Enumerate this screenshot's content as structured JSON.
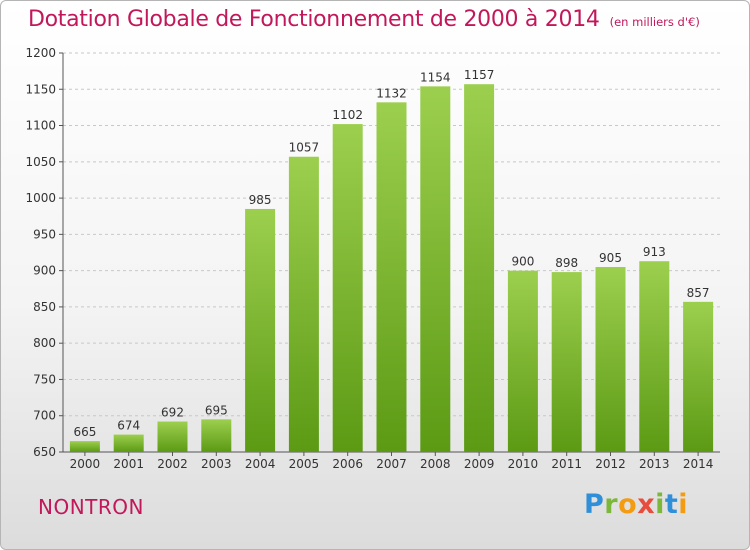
{
  "title": "Dotation Globale de Fonctionnement de 2000 à 2014",
  "unit": "(en milliers d'€)",
  "city": "NONTRON",
  "logo": {
    "letters": [
      "P",
      "r",
      "o",
      "x",
      "i",
      "t",
      "i"
    ],
    "colors": [
      "#2f8fd8",
      "#7bb83a",
      "#f39c12",
      "#e74c3c",
      "#7bb83a",
      "#2f8fd8",
      "#f39c12"
    ]
  },
  "colors": {
    "title": "#c2185b",
    "bar_top": "#9ccf4e",
    "bar_bottom": "#5c9a14",
    "grid": "#c8c8c8"
  },
  "chart_data": {
    "type": "bar",
    "categories": [
      "2000",
      "2001",
      "2002",
      "2003",
      "2004",
      "2005",
      "2006",
      "2007",
      "2008",
      "2009",
      "2010",
      "2011",
      "2012",
      "2013",
      "2014"
    ],
    "values": [
      665,
      674,
      692,
      695,
      985,
      1057,
      1102,
      1132,
      1154,
      1157,
      900,
      898,
      905,
      913,
      857
    ],
    "title": "Dotation Globale de Fonctionnement de 2000 à 2014",
    "ylim": [
      650,
      1200
    ],
    "yticks": [
      650,
      700,
      750,
      800,
      850,
      900,
      950,
      1000,
      1050,
      1100,
      1150,
      1200
    ],
    "grid": true,
    "grid_axis": "y",
    "data_labels": true
  }
}
